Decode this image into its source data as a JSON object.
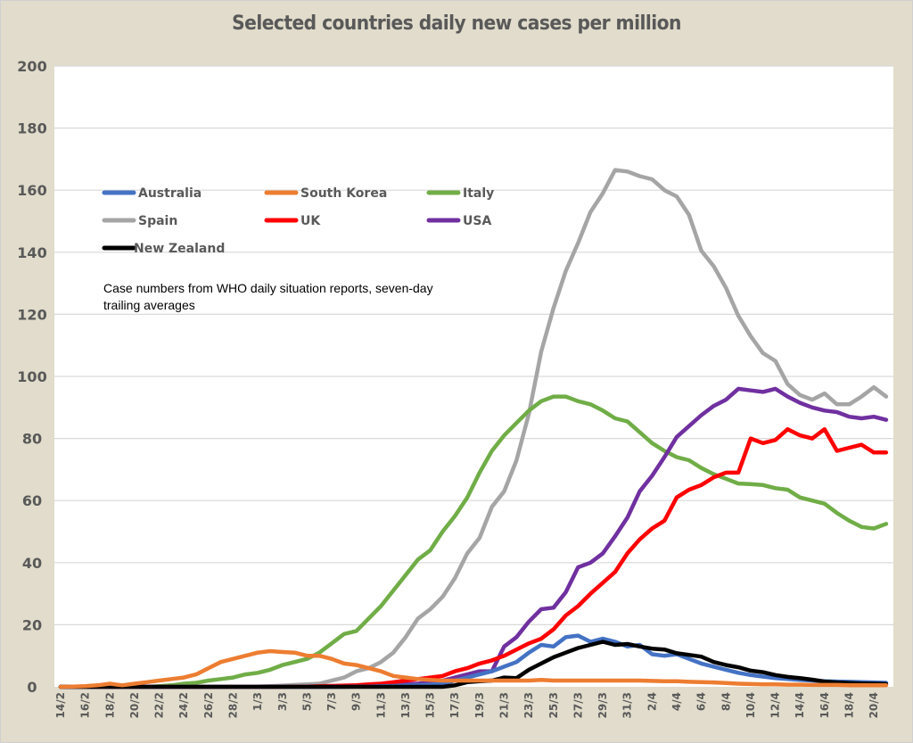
{
  "chart_data": {
    "type": "line",
    "title": "Selected countries daily new cases per million",
    "xlabel": "",
    "ylabel": "",
    "ylim": [
      0,
      200
    ],
    "yticks": [
      "0",
      "20",
      "40",
      "60",
      "80",
      "100",
      "120",
      "140",
      "160",
      "180",
      "200"
    ],
    "grid": true,
    "legend_position": "top-left",
    "annotation": [
      "Case numbers from WHO daily situation reports, seven-day",
      "trailing averages"
    ],
    "x": [
      "14/2",
      "15/2",
      "16/2",
      "17/2",
      "18/2",
      "19/2",
      "20/2",
      "21/2",
      "22/2",
      "23/2",
      "24/2",
      "25/2",
      "26/2",
      "27/2",
      "28/2",
      "29/2",
      "1/3",
      "2/3",
      "3/3",
      "4/3",
      "5/3",
      "6/3",
      "7/3",
      "8/3",
      "9/3",
      "10/3",
      "11/3",
      "12/3",
      "13/3",
      "14/3",
      "15/3",
      "16/3",
      "17/3",
      "18/3",
      "19/3",
      "20/3",
      "21/3",
      "22/3",
      "23/3",
      "24/3",
      "25/3",
      "26/3",
      "27/3",
      "28/3",
      "29/3",
      "30/3",
      "31/3",
      "1/4",
      "2/4",
      "3/4",
      "4/4",
      "5/4",
      "6/4",
      "7/4",
      "8/4",
      "9/4",
      "10/4",
      "11/4",
      "12/4",
      "13/4",
      "14/4",
      "15/4",
      "16/4",
      "17/4",
      "18/4",
      "19/4",
      "20/4",
      "21/4"
    ],
    "xtick_labels": [
      "14/2",
      "16/2",
      "18/2",
      "20/2",
      "22/2",
      "24/2",
      "26/2",
      "28/2",
      "1/3",
      "3/3",
      "5/3",
      "7/3",
      "9/3",
      "11/3",
      "13/3",
      "15/3",
      "17/3",
      "19/3",
      "21/3",
      "23/3",
      "25/3",
      "27/3",
      "29/3",
      "31/3",
      "2/4",
      "4/4",
      "6/4",
      "8/4",
      "10/4",
      "12/4",
      "14/4",
      "16/4",
      "18/4",
      "20/4"
    ],
    "series": [
      {
        "name": "Australia",
        "color": "#4472c4",
        "values": [
          0,
          0,
          0,
          0,
          0,
          0,
          0,
          0,
          0,
          0,
          0,
          0,
          0,
          0,
          0,
          0,
          0,
          0,
          0,
          0,
          0,
          0,
          0,
          0,
          0.1,
          0.1,
          0.2,
          0.3,
          0.4,
          0.5,
          0.7,
          1,
          2,
          3,
          4,
          5,
          6.5,
          8,
          11,
          13.5,
          13,
          16,
          16.5,
          14.5,
          15.5,
          14.5,
          13,
          13.5,
          10.5,
          10,
          10.5,
          9,
          7.5,
          6.5,
          5.5,
          4.5,
          3.8,
          3.3,
          2.8,
          2.5,
          2.2,
          2,
          1.8,
          1.7,
          1.6,
          1.5,
          1.4,
          1.3
        ]
      },
      {
        "name": "South Korea",
        "color": "#ed7d31",
        "values": [
          0,
          0.1,
          0.2,
          0.5,
          1,
          0.5,
          1,
          1.5,
          2,
          2.5,
          3,
          4,
          6,
          8,
          9,
          10,
          11,
          11.5,
          11.2,
          11,
          10,
          10,
          9,
          7.5,
          7,
          6,
          5,
          3.5,
          3,
          2.5,
          2.2,
          2,
          2,
          2,
          2,
          2,
          2,
          2,
          2,
          2.2,
          2,
          2,
          2,
          2,
          2,
          2,
          2,
          2,
          1.9,
          1.8,
          1.8,
          1.6,
          1.5,
          1.4,
          1.2,
          1,
          0.9,
          0.8,
          0.8,
          0.7,
          0.7,
          0.6,
          0.6,
          0.6,
          0.5,
          0.5,
          0.5,
          0.5
        ]
      },
      {
        "name": "Italy",
        "color": "#70ad47",
        "values": [
          0,
          0,
          0,
          0,
          0,
          0,
          0,
          0,
          0.2,
          0.5,
          1,
          1.3,
          2,
          2.5,
          3,
          4,
          4.5,
          5.5,
          7,
          8,
          9,
          11,
          14,
          17,
          18,
          22,
          26,
          31,
          36,
          41,
          44,
          50,
          55,
          61,
          69,
          76,
          81,
          85,
          89,
          92,
          93.5,
          93.5,
          92,
          91,
          89,
          86.5,
          85.5,
          82,
          78.5,
          76,
          74,
          73,
          70.5,
          68.5,
          67,
          65.5,
          65.3,
          65,
          64,
          63.5,
          61,
          60,
          59,
          56,
          53.5,
          51.5,
          51,
          52.5
        ]
      },
      {
        "name": "Spain",
        "color": "#a5a5a5",
        "values": [
          0,
          0,
          0,
          0,
          0,
          0,
          0,
          0,
          0,
          0,
          0,
          0,
          0,
          0,
          0,
          0,
          0.1,
          0.2,
          0.4,
          0.6,
          0.8,
          1,
          2,
          3,
          5,
          6,
          8,
          11,
          16,
          22,
          25,
          29,
          35,
          43,
          48,
          58,
          63,
          73,
          88,
          108,
          122,
          134,
          143,
          153,
          159,
          166.5,
          166,
          164.5,
          163.5,
          160,
          158,
          152,
          140.5,
          135.5,
          128.5,
          119.5,
          113,
          107.5,
          105,
          97.5,
          94,
          92.5,
          94.5,
          91,
          91,
          93.5,
          96.5,
          93.5
        ]
      },
      {
        "name": "UK",
        "color": "#ff0000",
        "values": [
          0,
          0,
          0,
          0,
          0,
          0,
          0,
          0,
          0,
          0,
          0,
          0,
          0,
          0,
          0,
          0,
          0,
          0,
          0,
          0.1,
          0.1,
          0.2,
          0.3,
          0.4,
          0.5,
          0.8,
          1,
          1.5,
          2,
          2.5,
          3,
          3.5,
          5,
          6,
          7.5,
          8.5,
          10,
          12,
          14,
          15.5,
          18.5,
          23,
          26,
          30,
          33.5,
          37,
          43,
          47.5,
          51,
          53.5,
          61,
          63.5,
          65,
          67.5,
          69,
          69,
          80,
          78.5,
          79.5,
          83,
          81,
          80,
          83,
          76,
          77,
          78,
          75.5,
          75.5
        ]
      },
      {
        "name": "USA",
        "color": "#7030a0",
        "values": [
          0,
          0,
          0,
          0,
          0,
          0,
          0,
          0,
          0,
          0,
          0,
          0,
          0,
          0,
          0,
          0,
          0,
          0,
          0,
          0,
          0,
          0,
          0.1,
          0.1,
          0.2,
          0.3,
          0.4,
          0.6,
          0.8,
          1,
          1.5,
          2,
          3,
          4,
          5,
          5,
          13,
          16,
          21,
          25,
          25.5,
          30.5,
          38.5,
          40,
          43,
          48.5,
          54.5,
          63,
          68,
          74,
          80.5,
          84,
          87.5,
          90.5,
          92.5,
          96,
          95.5,
          95,
          96,
          93.5,
          91.5,
          90,
          89,
          88.5,
          87,
          86.5,
          87,
          86
        ]
      },
      {
        "name": "New Zealand",
        "color": "#000000",
        "values": [
          0,
          0,
          0,
          0,
          0,
          0,
          0,
          0,
          0,
          0,
          0,
          0,
          0,
          0,
          0,
          0,
          0,
          0,
          0,
          0,
          0,
          0,
          0,
          0,
          0,
          0,
          0,
          0,
          0,
          0,
          0,
          0,
          0.5,
          1.5,
          1.8,
          2,
          3,
          2.8,
          5.5,
          7.5,
          9.5,
          11,
          12.5,
          13.5,
          14.5,
          13.5,
          13.8,
          13,
          12.3,
          12,
          10.8,
          10.3,
          9.7,
          8,
          7,
          6.3,
          5.2,
          4.7,
          3.8,
          3.2,
          2.8,
          2.3,
          1.7,
          1.4,
          1.2,
          1.1,
          1,
          0.9
        ]
      }
    ]
  }
}
